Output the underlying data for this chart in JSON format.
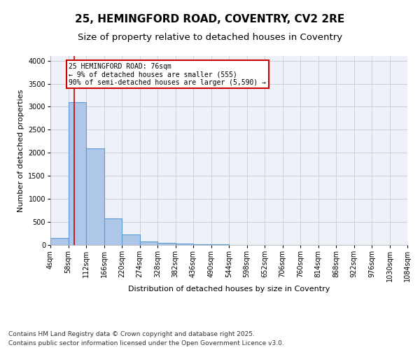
{
  "title_line1": "25, HEMINGFORD ROAD, COVENTRY, CV2 2RE",
  "title_line2": "Size of property relative to detached houses in Coventry",
  "xlabel": "Distribution of detached houses by size in Coventry",
  "ylabel": "Number of detached properties",
  "bar_values": [
    150,
    3100,
    2100,
    580,
    230,
    70,
    50,
    30,
    20,
    10,
    5,
    5,
    5,
    5,
    5,
    5,
    5,
    5,
    5,
    5
  ],
  "bin_edges": [
    4,
    58,
    112,
    166,
    220,
    274,
    328,
    382,
    436,
    490,
    544,
    598,
    652,
    706,
    760,
    814,
    868,
    922,
    976,
    1030,
    1084
  ],
  "tick_labels": [
    "4sqm",
    "58sqm",
    "112sqm",
    "166sqm",
    "220sqm",
    "274sqm",
    "328sqm",
    "382sqm",
    "436sqm",
    "490sqm",
    "544sqm",
    "598sqm",
    "652sqm",
    "706sqm",
    "760sqm",
    "814sqm",
    "868sqm",
    "922sqm",
    "976sqm",
    "1030sqm",
    "1084sqm"
  ],
  "bar_color": "#aec6e8",
  "bar_edge_color": "#5b9bd5",
  "bar_linewidth": 0.8,
  "grid_color": "#c8d0dc",
  "bg_color": "#eef2f8",
  "property_line_x": 76,
  "property_line_color": "#cc0000",
  "annotation_text": "25 HEMINGFORD ROAD: 76sqm\n← 9% of detached houses are smaller (555)\n90% of semi-detached houses are larger (5,590) →",
  "annotation_box_color": "#cc0000",
  "annotation_text_color": "#000000",
  "ylim": [
    0,
    4100
  ],
  "yticks": [
    0,
    500,
    1000,
    1500,
    2000,
    2500,
    3000,
    3500,
    4000
  ],
  "footer_line1": "Contains HM Land Registry data © Crown copyright and database right 2025.",
  "footer_line2": "Contains public sector information licensed under the Open Government Licence v3.0.",
  "title_fontsize": 11,
  "subtitle_fontsize": 9.5,
  "axis_label_fontsize": 8,
  "tick_fontsize": 7,
  "footer_fontsize": 6.5,
  "annotation_fontsize": 7
}
